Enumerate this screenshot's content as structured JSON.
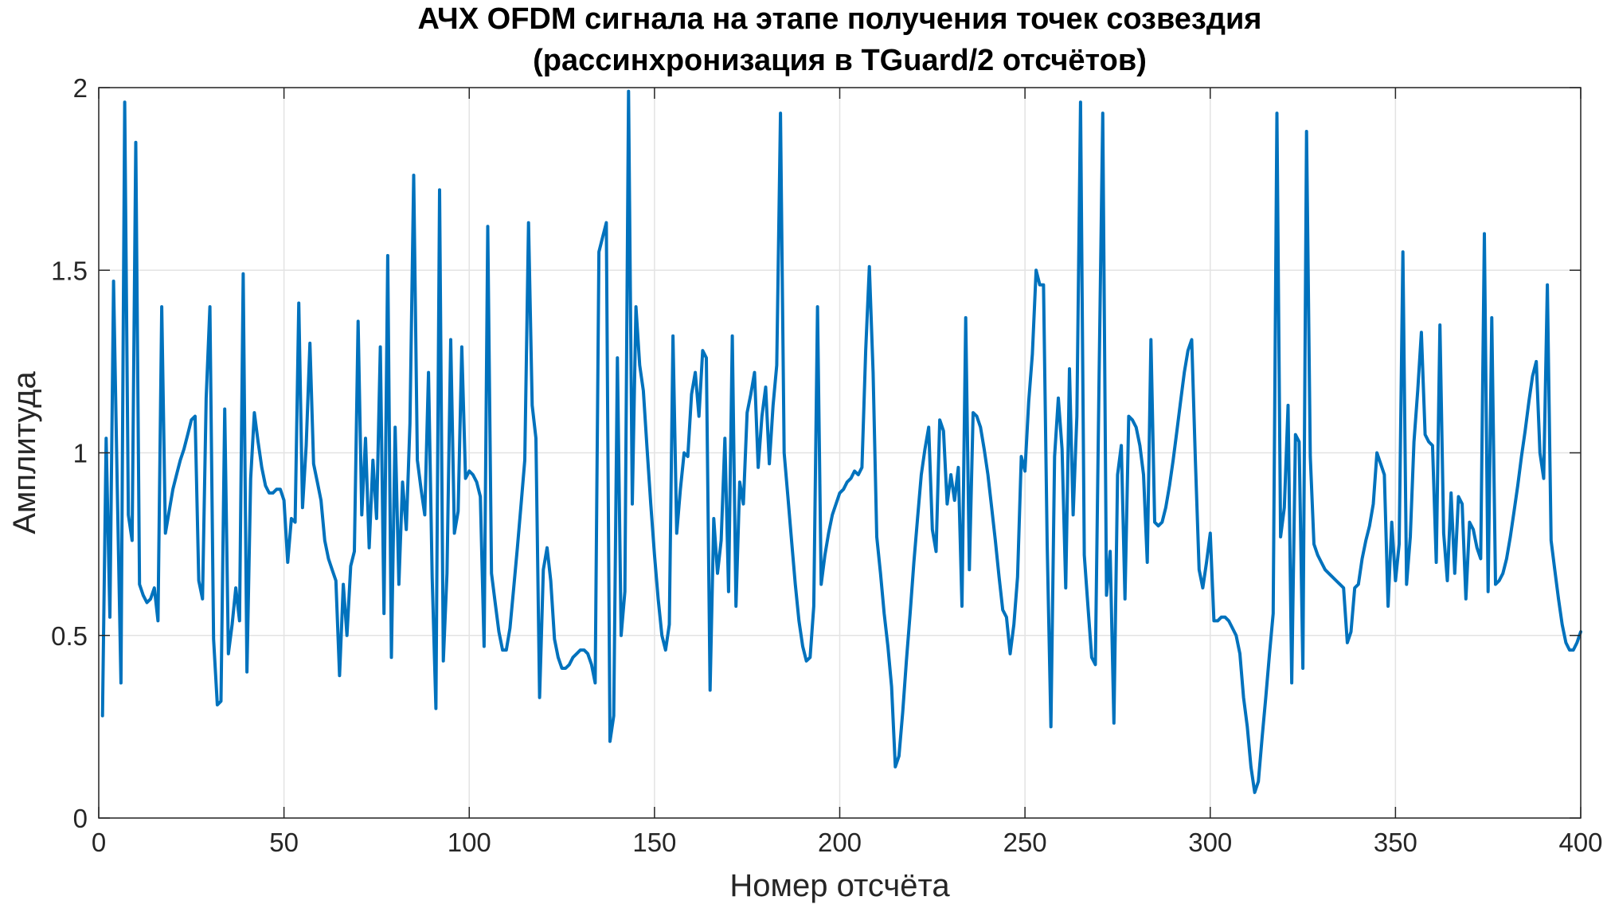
{
  "chart_data": {
    "type": "line",
    "title": [
      "АЧХ OFDM сигнала на этапе получения точек созвездия",
      "(рассинхронизация в TGuard/2 отсчётов)"
    ],
    "xlabel": "Номер отсчёта",
    "ylabel": "Амплитуда",
    "xlim": [
      0,
      400
    ],
    "ylim": [
      0,
      2
    ],
    "xticks": [
      0,
      50,
      100,
      150,
      200,
      250,
      300,
      350,
      400
    ],
    "yticks": [
      0,
      0.5,
      1,
      1.5,
      2
    ],
    "xtick_labels": [
      "0",
      "50",
      "100",
      "150",
      "200",
      "250",
      "300",
      "350",
      "400"
    ],
    "ytick_labels": [
      "0",
      "0.5",
      "1",
      "1.5",
      "2"
    ],
    "grid": true,
    "series_color": "#0072BD",
    "series": [
      {
        "x": [
          1,
          2,
          3,
          4,
          5,
          6,
          7,
          8,
          9,
          10,
          11,
          12,
          13,
          14,
          15,
          16,
          17,
          18,
          19,
          20,
          21,
          22,
          23,
          24,
          25,
          26,
          27,
          28,
          29,
          30,
          31,
          32,
          33,
          34,
          35,
          36,
          37,
          38,
          39,
          40,
          41,
          42,
          43,
          44,
          45,
          46,
          47,
          48,
          49,
          50,
          51,
          52,
          53,
          54,
          55,
          56,
          57,
          58,
          59,
          60,
          61,
          62,
          63,
          64,
          65,
          66,
          67,
          68,
          69,
          70,
          71,
          72,
          73,
          74,
          75,
          76,
          77,
          78,
          79,
          80,
          81,
          82,
          83,
          84,
          85,
          86,
          87,
          88,
          89,
          90,
          91,
          92,
          93,
          94,
          95,
          96,
          97,
          98,
          99,
          100,
          101,
          102,
          103,
          104,
          105,
          106,
          107,
          108,
          109,
          110,
          111,
          112,
          113,
          114,
          115,
          116,
          117,
          118,
          119,
          120,
          121,
          122,
          123,
          124,
          125,
          126,
          127,
          128,
          129,
          130,
          131,
          132,
          133,
          134,
          135,
          136,
          137,
          138,
          139,
          140,
          141,
          142,
          143,
          144,
          145,
          146,
          147,
          148,
          149,
          150,
          151,
          152,
          153,
          154,
          155,
          156,
          157,
          158,
          159,
          160,
          161,
          162,
          163,
          164,
          165,
          166,
          167,
          168,
          169,
          170,
          171,
          172,
          173,
          174,
          175,
          176,
          177,
          178,
          179,
          180,
          181,
          182,
          183,
          184,
          185,
          186,
          187,
          188,
          189,
          190,
          191,
          192,
          193,
          194,
          195,
          196,
          197,
          198,
          199,
          200,
          201,
          202,
          203,
          204,
          205,
          206,
          207,
          208,
          209,
          210,
          211,
          212,
          213,
          214,
          215,
          216,
          217,
          218,
          219,
          220,
          221,
          222,
          223,
          224,
          225,
          226,
          227,
          228,
          229,
          230,
          231,
          232,
          233,
          234,
          235,
          236,
          237,
          238,
          239,
          240,
          241,
          242,
          243,
          244,
          245,
          246,
          247,
          248,
          249,
          250,
          251,
          252,
          253,
          254,
          255,
          256,
          257,
          258,
          259,
          260,
          261,
          262,
          263,
          264,
          265,
          266,
          267,
          268,
          269,
          270,
          271,
          272,
          273,
          274,
          275,
          276,
          277,
          278,
          279,
          280,
          281,
          282,
          283,
          284,
          285,
          286,
          287,
          288,
          289,
          290,
          291,
          292,
          293,
          294,
          295,
          296,
          297,
          298,
          299,
          300,
          301,
          302,
          303,
          304,
          305,
          306,
          307,
          308,
          309,
          310,
          311,
          312,
          313,
          314,
          315,
          316,
          317,
          318,
          319,
          320,
          321,
          322,
          323,
          324,
          325,
          326,
          327,
          328,
          329,
          330,
          331,
          332,
          333,
          334,
          335,
          336,
          337,
          338,
          339,
          340,
          341,
          342,
          343,
          344,
          345,
          346,
          347,
          348,
          349,
          350,
          351,
          352,
          353,
          354,
          355,
          356,
          357,
          358,
          359,
          360,
          361,
          362,
          363,
          364,
          365,
          366,
          367,
          368,
          369,
          370,
          371,
          372,
          373,
          374,
          375,
          376,
          377,
          378,
          379,
          380,
          381,
          382,
          383,
          384,
          385,
          386,
          387,
          388,
          389,
          390,
          391,
          392,
          393,
          394,
          395,
          396,
          397,
          398,
          399,
          400
        ],
        "y": [
          0.28,
          1.04,
          0.55,
          1.47,
          0.9,
          0.37,
          1.96,
          0.83,
          0.76,
          1.85,
          0.64,
          0.61,
          0.59,
          0.6,
          0.63,
          0.54,
          1.4,
          0.78,
          0.84,
          0.9,
          0.94,
          0.98,
          1.01,
          1.05,
          1.09,
          1.1,
          0.65,
          0.6,
          1.15,
          1.4,
          0.49,
          0.31,
          0.32,
          1.12,
          0.45,
          0.53,
          0.63,
          0.54,
          1.49,
          0.4,
          0.93,
          1.11,
          1.03,
          0.96,
          0.91,
          0.89,
          0.89,
          0.9,
          0.9,
          0.87,
          0.7,
          0.82,
          0.81,
          1.41,
          0.85,
          1.02,
          1.3,
          0.97,
          0.92,
          0.87,
          0.76,
          0.71,
          0.68,
          0.65,
          0.39,
          0.64,
          0.5,
          0.69,
          0.73,
          1.36,
          0.83,
          1.04,
          0.74,
          0.98,
          0.82,
          1.29,
          0.56,
          1.54,
          0.44,
          1.07,
          0.64,
          0.92,
          0.79,
          1.08,
          1.76,
          0.98,
          0.9,
          0.83,
          1.22,
          0.66,
          0.3,
          1.72,
          0.43,
          0.67,
          1.31,
          0.78,
          0.84,
          1.29,
          0.93,
          0.95,
          0.94,
          0.92,
          0.88,
          0.47,
          1.62,
          0.67,
          0.59,
          0.51,
          0.46,
          0.46,
          0.52,
          0.63,
          0.74,
          0.86,
          0.98,
          1.63,
          1.13,
          1.04,
          0.33,
          0.68,
          0.74,
          0.65,
          0.49,
          0.44,
          0.41,
          0.41,
          0.42,
          0.44,
          0.45,
          0.46,
          0.46,
          0.45,
          0.42,
          0.37,
          1.55,
          1.59,
          1.63,
          0.21,
          0.28,
          1.26,
          0.5,
          0.62,
          1.99,
          0.86,
          1.4,
          1.24,
          1.17,
          1.01,
          0.86,
          0.72,
          0.6,
          0.5,
          0.46,
          0.53,
          1.32,
          0.78,
          0.9,
          1.0,
          0.99,
          1.16,
          1.22,
          1.1,
          1.28,
          1.26,
          0.35,
          0.82,
          0.67,
          0.76,
          1.04,
          0.62,
          1.32,
          0.58,
          0.92,
          0.86,
          1.11,
          1.16,
          1.22,
          0.96,
          1.1,
          1.18,
          0.97,
          1.13,
          1.24,
          1.93,
          1.0,
          0.88,
          0.76,
          0.64,
          0.54,
          0.47,
          0.43,
          0.44,
          0.58,
          1.4,
          0.64,
          0.72,
          0.78,
          0.83,
          0.86,
          0.89,
          0.9,
          0.92,
          0.93,
          0.95,
          0.94,
          0.96,
          1.28,
          1.51,
          1.22,
          0.77,
          0.67,
          0.56,
          0.47,
          0.36,
          0.14,
          0.17,
          0.29,
          0.43,
          0.56,
          0.7,
          0.82,
          0.94,
          1.01,
          1.07,
          0.79,
          0.73,
          1.09,
          1.06,
          0.86,
          0.94,
          0.87,
          0.96,
          0.58,
          1.37,
          0.68,
          1.11,
          1.1,
          1.07,
          1.01,
          0.94,
          0.85,
          0.76,
          0.66,
          0.57,
          0.55,
          0.45,
          0.53,
          0.66,
          0.99,
          0.95,
          1.14,
          1.27,
          1.5,
          1.46,
          1.46,
          0.75,
          0.25,
          0.99,
          1.15,
          1.01,
          0.63,
          1.23,
          0.83,
          1.1,
          1.96,
          0.72,
          0.58,
          0.44,
          0.42,
          1.21,
          1.93,
          0.61,
          0.73,
          0.26,
          0.94,
          1.02,
          0.6,
          1.1,
          1.09,
          1.07,
          1.02,
          0.94,
          0.7,
          1.31,
          0.81,
          0.8,
          0.81,
          0.85,
          0.91,
          0.98,
          1.06,
          1.14,
          1.22,
          1.28,
          1.31,
          0.98,
          0.68,
          0.63,
          0.7,
          0.78,
          0.54,
          0.54,
          0.55,
          0.55,
          0.54,
          0.52,
          0.5,
          0.45,
          0.33,
          0.25,
          0.14,
          0.07,
          0.1,
          0.22,
          0.33,
          0.45,
          0.56,
          1.93,
          0.77,
          0.85,
          1.13,
          0.37,
          1.05,
          1.03,
          0.41,
          1.88,
          0.99,
          0.75,
          0.72,
          0.7,
          0.68,
          0.67,
          0.66,
          0.65,
          0.64,
          0.63,
          0.48,
          0.51,
          0.63,
          0.64,
          0.71,
          0.76,
          0.8,
          0.86,
          1.0,
          0.97,
          0.94,
          0.58,
          0.81,
          0.65,
          0.75,
          1.55,
          0.64,
          0.77,
          1.03,
          1.17,
          1.33,
          1.05,
          1.03,
          1.02,
          0.7,
          1.35,
          0.78,
          0.65,
          0.89,
          0.67,
          0.88,
          0.86,
          0.6,
          0.81,
          0.79,
          0.74,
          0.71,
          1.6,
          0.62,
          1.37,
          0.64,
          0.65,
          0.67,
          0.71,
          0.77,
          0.84,
          0.91,
          0.99,
          1.06,
          1.14,
          1.21,
          1.25,
          1.0,
          0.93,
          1.46,
          0.76,
          0.68,
          0.6,
          0.53,
          0.48,
          0.46,
          0.46,
          0.48,
          0.51
        ]
      }
    ]
  }
}
